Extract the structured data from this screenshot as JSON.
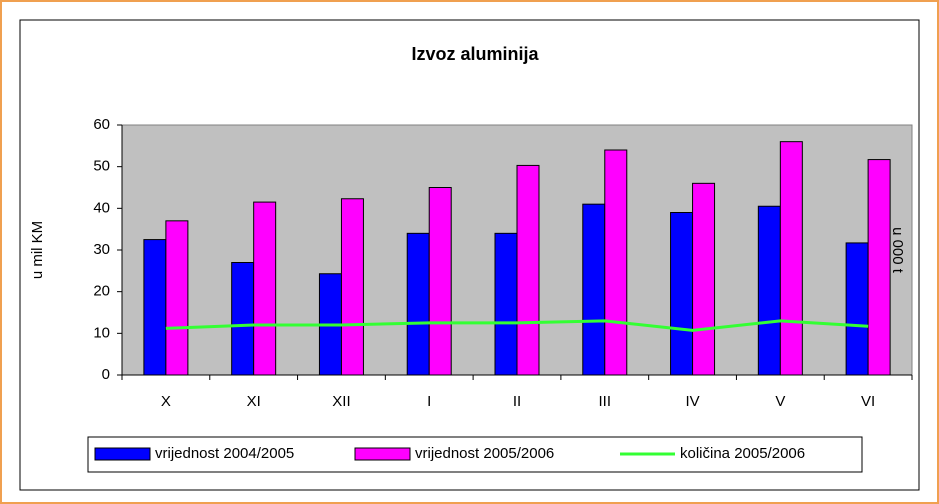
{
  "chart_data": {
    "type": "bar_line",
    "title": "Izvoz aluminija",
    "y_label": "u mil KM",
    "y2_label": "u 000 t",
    "categories": [
      "X",
      "XI",
      "XII",
      "I",
      "II",
      "III",
      "IV",
      "V",
      "VI"
    ],
    "series": [
      {
        "name": "vrijednost 2004/2005",
        "color": "#0000ff",
        "kind": "bar",
        "values": [
          32.5,
          27,
          24.3,
          34,
          34,
          41,
          39,
          40.5,
          31.7
        ]
      },
      {
        "name": "vrijednost 2005/2006",
        "color": "#ff00ff",
        "kind": "bar",
        "values": [
          37,
          41.5,
          42.3,
          45,
          50.3,
          54,
          46,
          56,
          51.7
        ]
      },
      {
        "name": "količina 2005/2006",
        "color": "#33ff33",
        "kind": "line",
        "values": [
          11.2,
          12,
          12,
          12.5,
          12.5,
          13,
          10.7,
          13,
          11.7
        ]
      }
    ],
    "ylim": [
      0,
      60
    ],
    "yticks": [
      0,
      10,
      20,
      30,
      40,
      50,
      60
    ]
  }
}
